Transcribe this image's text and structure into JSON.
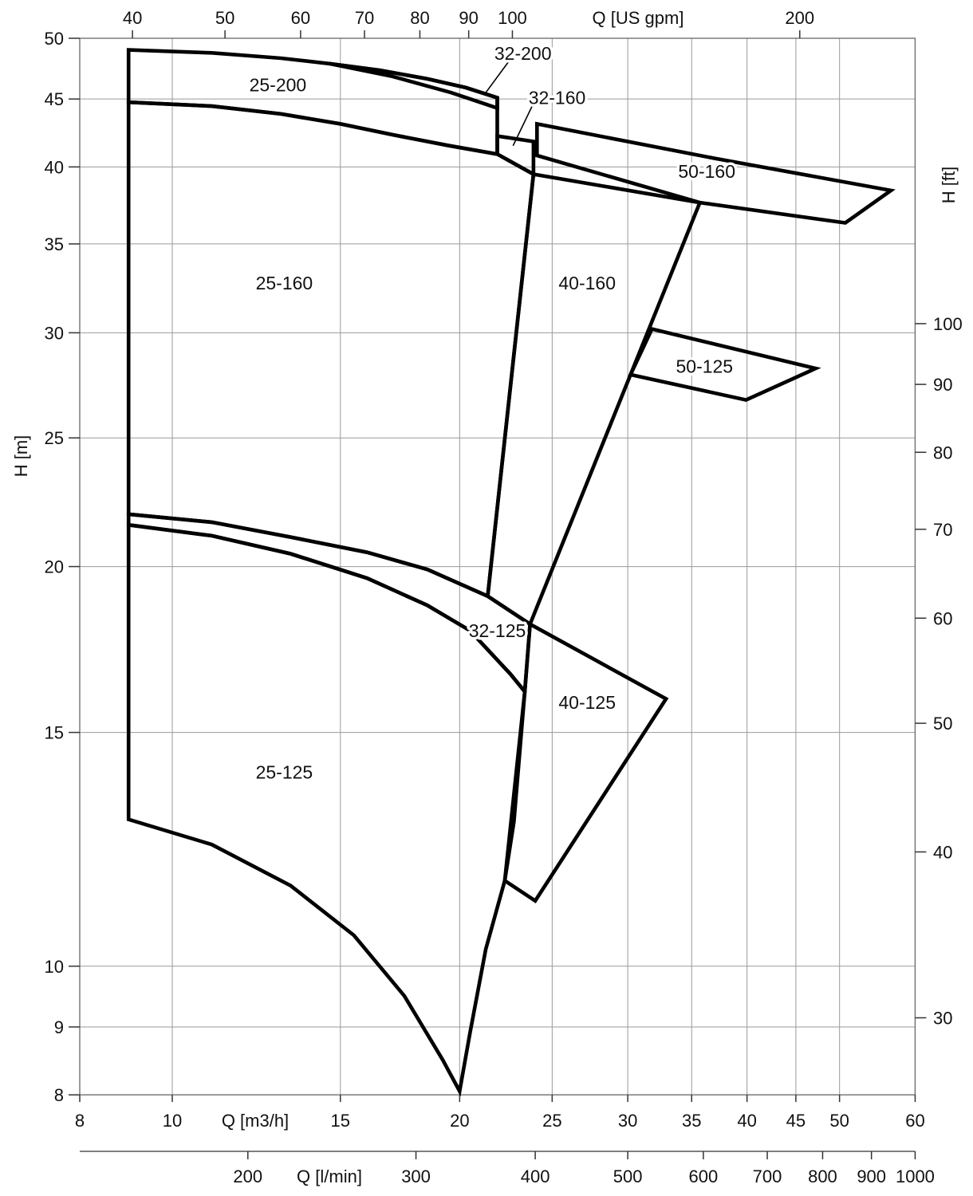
{
  "page": {
    "background": "#ffffff",
    "description_colors": {
      "region_line": "#000000",
      "grid_line": "#9a9a9a",
      "frame_line": "#666666",
      "tick_mark": "#333333",
      "text": "#111111"
    }
  },
  "chart_data": {
    "type": "area",
    "chart_kind": "pump-performance-range-chart",
    "title": "",
    "grid": "on",
    "axes": {
      "x_bottom": {
        "title": "Q [m3/h]",
        "scale": "log",
        "min": 8,
        "max": 60,
        "ticks": [
          8,
          10,
          15,
          20,
          25,
          30,
          35,
          40,
          45,
          50,
          60
        ],
        "gridlines": [
          10,
          15,
          20,
          25,
          30,
          35,
          40,
          45,
          50
        ]
      },
      "x_bottom_secondary": {
        "title": "Q [l/min]",
        "ticks": [
          200,
          300,
          400,
          500,
          600,
          700,
          800,
          900,
          1000
        ],
        "lmin_per_m3h": 16.6667
      },
      "x_top": {
        "title": "Q [US gpm]",
        "ticks": [
          40,
          50,
          60,
          70,
          80,
          90,
          100,
          200
        ],
        "m3h_per_usgpm": 0.2271247
      },
      "y_left": {
        "title": "H [m]",
        "scale": "log",
        "min": 8,
        "max": 50,
        "ticks": [
          50,
          45,
          40,
          35,
          30,
          25,
          20,
          15,
          10,
          9,
          8
        ],
        "gridlines": [
          45,
          40,
          35,
          30,
          25,
          20,
          15,
          10,
          9
        ]
      },
      "y_right": {
        "title": "H [ft]",
        "ticks": [
          100,
          90,
          80,
          70,
          60,
          50,
          40,
          30
        ],
        "m_per_ft": 0.3048
      }
    },
    "regions": [
      {
        "id": "25-200",
        "label": "25-200",
        "label_at": [
          12.9,
          46.1
        ],
        "polygon": [
          [
            9,
            49
          ],
          [
            11,
            48.75
          ],
          [
            13,
            48.3
          ],
          [
            14.6,
            47.85
          ],
          [
            16.5,
            47.3
          ],
          [
            18.5,
            46.6
          ],
          [
            20.3,
            45.9
          ],
          [
            21.9,
            45.1
          ],
          [
            21.9,
            40.9
          ],
          [
            19.5,
            41.5
          ],
          [
            17,
            42.3
          ],
          [
            15,
            43.1
          ],
          [
            13,
            43.85
          ],
          [
            11,
            44.45
          ],
          [
            9,
            44.75
          ]
        ]
      },
      {
        "id": "32-200",
        "label": "32-200",
        "label_at": [
          23.3,
          48.7
        ],
        "leader": [
          [
            22.5,
            48.0
          ],
          [
            21.3,
            45.5
          ]
        ],
        "polygon": [
          [
            14.6,
            47.85
          ],
          [
            16.5,
            47.3
          ],
          [
            18.5,
            46.6
          ],
          [
            20.3,
            45.9
          ],
          [
            21.9,
            45.1
          ],
          [
            21.9,
            44.3
          ],
          [
            19.6,
            45.5
          ],
          [
            17,
            46.8
          ]
        ]
      },
      {
        "id": "32-160",
        "label": "32-160",
        "label_at": [
          25.3,
          45.1
        ],
        "leader": [
          [
            24.0,
            44.95
          ],
          [
            22.75,
            41.5
          ]
        ],
        "polygon": [
          [
            21.9,
            42.2
          ],
          [
            23.9,
            41.8
          ],
          [
            23.9,
            39.5
          ],
          [
            21.9,
            40.9
          ]
        ]
      },
      {
        "id": "50-160",
        "label": "50-160",
        "label_at": [
          36.3,
          39.7
        ],
        "polygon": [
          [
            24.1,
            43.1
          ],
          [
            37,
            40.6
          ],
          [
            56.6,
            38.4
          ],
          [
            50.7,
            36.3
          ],
          [
            35.7,
            37.6
          ],
          [
            24.1,
            40.8
          ]
        ]
      },
      {
        "id": "25-160",
        "label": "25-160",
        "label_at": [
          13.1,
          32.7
        ],
        "polygon": [
          [
            9,
            44.75
          ],
          [
            11,
            44.45
          ],
          [
            13,
            43.85
          ],
          [
            15,
            43.1
          ],
          [
            17,
            42.3
          ],
          [
            19.5,
            41.5
          ],
          [
            21.9,
            40.9
          ],
          [
            23.9,
            39.5
          ],
          [
            21.4,
            19.0
          ],
          [
            18.5,
            19.9
          ],
          [
            16,
            20.5
          ],
          [
            13.3,
            21.05
          ],
          [
            11,
            21.6
          ],
          [
            9,
            21.9
          ]
        ]
      },
      {
        "id": "40-160",
        "label": "40-160",
        "label_at": [
          27.2,
          32.7
        ],
        "polygon": [
          [
            23.9,
            39.5
          ],
          [
            35.7,
            37.6
          ],
          [
            23.7,
            18.1
          ],
          [
            21.4,
            19.0
          ]
        ]
      },
      {
        "id": "50-125",
        "label": "50-125",
        "label_at": [
          36.1,
          28.3
        ],
        "polygon": [
          [
            31.8,
            30.2
          ],
          [
            47.2,
            28.2
          ],
          [
            39.9,
            26.7
          ],
          [
            30.2,
            27.9
          ]
        ]
      },
      {
        "id": "32-125",
        "label": "32-125",
        "label_at": [
          21.9,
          17.9
        ],
        "polygon": [
          [
            9,
            21.9
          ],
          [
            11,
            21.6
          ],
          [
            13.3,
            21.05
          ],
          [
            16,
            20.5
          ],
          [
            18.5,
            19.9
          ],
          [
            21.4,
            19.0
          ],
          [
            23.7,
            18.1
          ],
          [
            23.4,
            16.1
          ],
          [
            22.6,
            16.6
          ],
          [
            20.5,
            17.9
          ],
          [
            18.5,
            18.7
          ],
          [
            16,
            19.6
          ],
          [
            13.3,
            20.45
          ],
          [
            11,
            21.1
          ],
          [
            9,
            21.5
          ]
        ]
      },
      {
        "id": "40-125",
        "label": "40-125",
        "label_at": [
          27.2,
          15.8
        ],
        "polygon": [
          [
            23.7,
            18.1
          ],
          [
            32.9,
            15.9
          ],
          [
            24.0,
            11.2
          ],
          [
            22.3,
            11.6
          ],
          [
            23.4,
            16.1
          ]
        ]
      },
      {
        "id": "25-125",
        "label": "25-125",
        "label_at": [
          13.1,
          14.0
        ],
        "polygon": [
          [
            9,
            21.5
          ],
          [
            11,
            21.1
          ],
          [
            13.3,
            20.45
          ],
          [
            16,
            19.6
          ],
          [
            18.5,
            18.7
          ],
          [
            20.5,
            17.9
          ],
          [
            22.6,
            16.6
          ],
          [
            23.4,
            16.1
          ],
          [
            22.8,
            12.85
          ],
          [
            22.3,
            11.6
          ],
          [
            21.3,
            10.3
          ],
          [
            20.5,
            8.9
          ],
          [
            20,
            8.05
          ],
          [
            19.2,
            8.5
          ],
          [
            17.5,
            9.5
          ],
          [
            15.5,
            10.55
          ],
          [
            13.3,
            11.5
          ],
          [
            11,
            12.35
          ],
          [
            9,
            12.9
          ]
        ]
      }
    ]
  }
}
